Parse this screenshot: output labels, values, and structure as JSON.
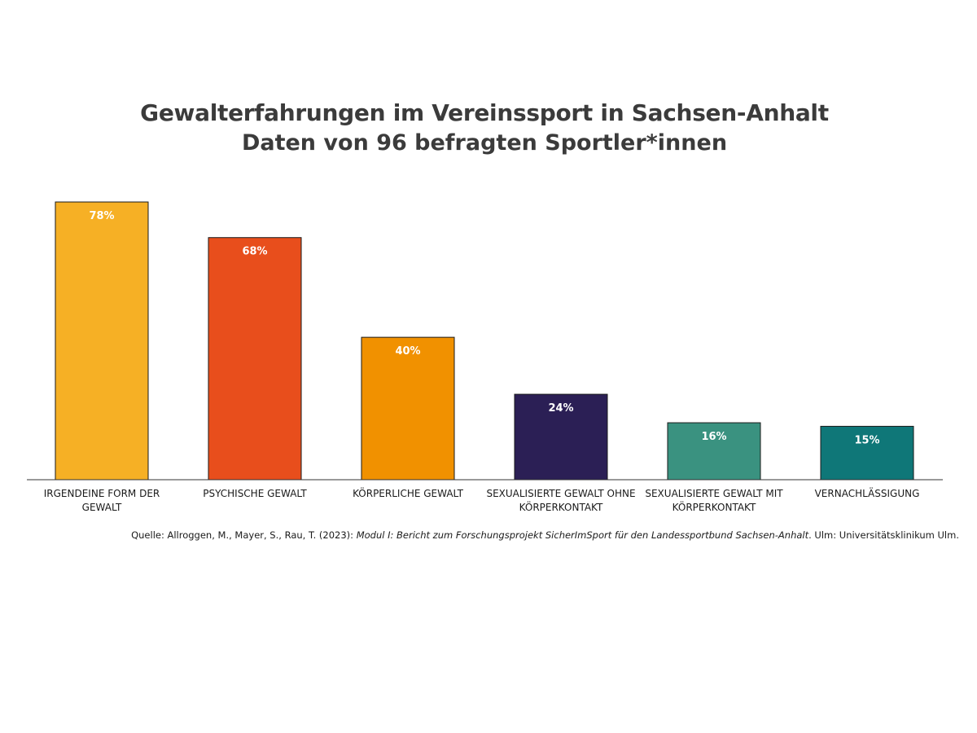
{
  "chart_data": {
    "type": "bar",
    "title": "Gewalterfahrungen im Vereinssport in Sachsen-Anhalt",
    "subtitle": "Daten von 96 befragten Sportler*innen",
    "categories": [
      [
        "IRGENDEINE FORM DER",
        "GEWALT"
      ],
      [
        "PSYCHISCHE GEWALT"
      ],
      [
        "KÖRPERLICHE GEWALT"
      ],
      [
        "SEXUALISIERTE GEWALT OHNE",
        "KÖRPERKONTAKT"
      ],
      [
        "SEXUALISIERTE GEWALT MIT",
        "KÖRPERKONTAKT"
      ],
      [
        "VERNACHLÄSSIGUNG"
      ]
    ],
    "values": [
      78,
      68,
      40,
      24,
      16,
      15
    ],
    "value_labels": [
      "78%",
      "68%",
      "40%",
      "24%",
      "16%",
      "15%"
    ],
    "colors": [
      "#f6b025",
      "#e84e1c",
      "#f19100",
      "#2b1f55",
      "#3a9280",
      "#0f7778"
    ],
    "ylim": [
      0,
      78
    ],
    "grid": false
  },
  "source": {
    "prefix": "Quelle: Allroggen, M., Mayer, S., Rau, T. (2023): ",
    "title": "Modul I: Bericht zum Forschungsprojekt SicherImSport für den Landessportbund Sachsen-Anhalt",
    "suffix": ". Ulm: Universitätsklinikum Ulm."
  }
}
